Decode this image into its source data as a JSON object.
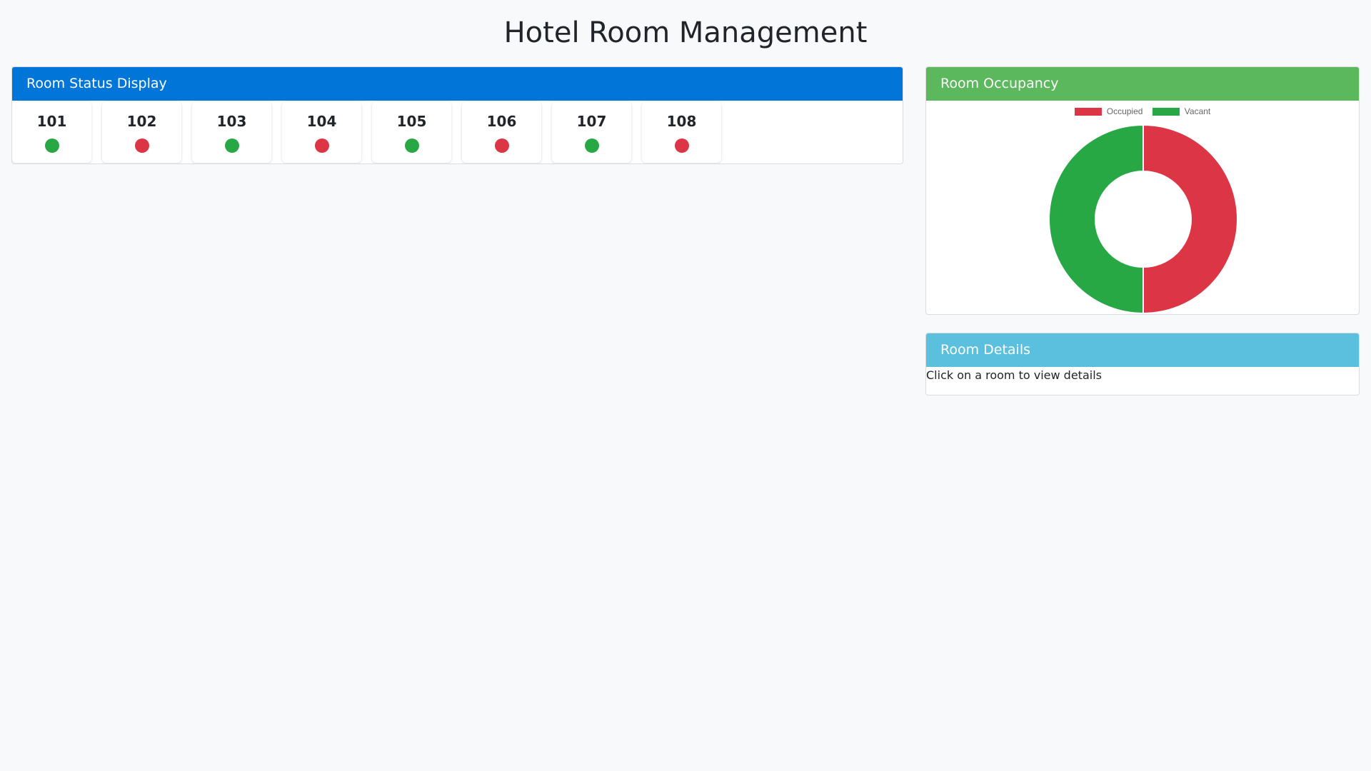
{
  "page_title": "Hotel Room Management",
  "status_panel": {
    "title": "Room Status Display",
    "rooms": [
      {
        "number": "101",
        "status": "vacant"
      },
      {
        "number": "102",
        "status": "occupied"
      },
      {
        "number": "103",
        "status": "vacant"
      },
      {
        "number": "104",
        "status": "occupied"
      },
      {
        "number": "105",
        "status": "vacant"
      },
      {
        "number": "106",
        "status": "occupied"
      },
      {
        "number": "107",
        "status": "vacant"
      },
      {
        "number": "108",
        "status": "occupied"
      }
    ]
  },
  "colors": {
    "occupied": "#dc3545",
    "vacant": "#28a745",
    "status_header": "#0275d8",
    "occupancy_header": "#5cb85c",
    "details_header": "#5bc0de"
  },
  "occupancy_panel": {
    "title": "Room Occupancy"
  },
  "chart_data": {
    "type": "pie",
    "variant": "doughnut",
    "categories": [
      "Occupied",
      "Vacant"
    ],
    "values": [
      4,
      4
    ],
    "colors": [
      "#dc3545",
      "#28a745"
    ],
    "legend": "top"
  },
  "details_panel": {
    "title": "Room Details",
    "message": "Click on a room to view details"
  }
}
